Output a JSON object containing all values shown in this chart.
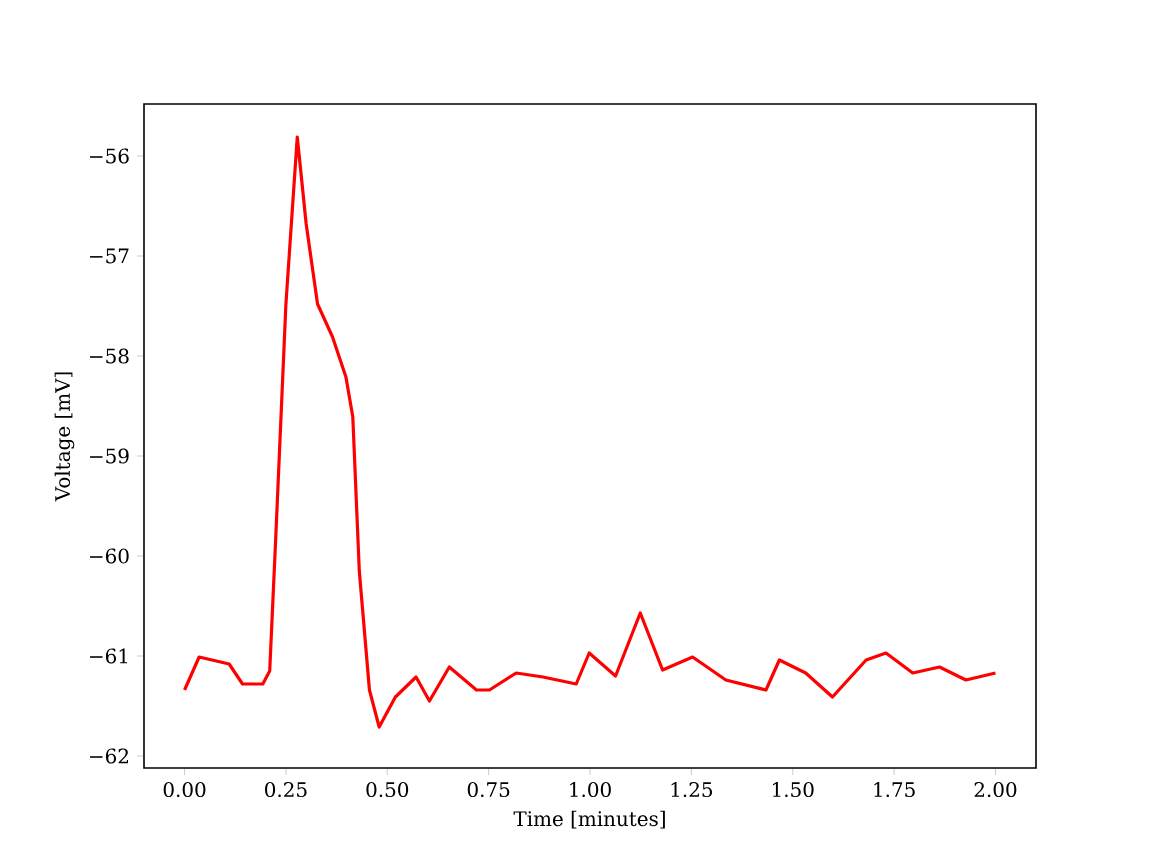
{
  "chart_data": {
    "type": "line",
    "xlabel": "Time [minutes]",
    "ylabel": "Voltage [mV]",
    "x": [
      0,
      0.036,
      0.11,
      0.143,
      0.193,
      0.21,
      0.225,
      0.25,
      0.278,
      0.3,
      0.328,
      0.365,
      0.398,
      0.415,
      0.431,
      0.456,
      0.48,
      0.52,
      0.571,
      0.604,
      0.653,
      0.72,
      0.752,
      0.818,
      0.884,
      0.966,
      0.998,
      1.063,
      1.124,
      1.179,
      1.253,
      1.335,
      1.434,
      1.467,
      1.532,
      1.598,
      1.681,
      1.73,
      1.796,
      1.862,
      1.927,
      2.0
    ],
    "series": [
      {
        "color": "#ff0000",
        "values": [
          -61.34,
          -61.01,
          -61.08,
          -61.28,
          -61.28,
          -61.15,
          -59.81,
          -57.48,
          -55.81,
          -56.68,
          -57.48,
          -57.81,
          -58.21,
          -58.61,
          -60.15,
          -61.34,
          -61.71,
          -61.41,
          -61.21,
          -61.45,
          -61.11,
          -61.34,
          -61.34,
          -61.17,
          -61.21,
          -61.28,
          -60.97,
          -61.2,
          -60.57,
          -61.14,
          -61.01,
          -61.24,
          -61.34,
          -61.04,
          -61.17,
          -61.41,
          -61.04,
          -60.97,
          -61.17,
          -61.11,
          -61.24,
          -61.17
        ]
      }
    ],
    "xlim": [
      -0.1,
      2.1
    ],
    "ylim": [
      -62.12,
      -55.48
    ],
    "xticks": [
      {
        "value": 0,
        "label": "0.00"
      },
      {
        "value": 0.25,
        "label": "0.25"
      },
      {
        "value": 0.5,
        "label": "0.50"
      },
      {
        "value": 0.75,
        "label": "0.75"
      },
      {
        "value": 1,
        "label": "1.00"
      },
      {
        "value": 1.25,
        "label": "1.25"
      },
      {
        "value": 1.5,
        "label": "1.50"
      },
      {
        "value": 1.75,
        "label": "1.75"
      },
      {
        "value": 2,
        "label": "2.00"
      }
    ],
    "yticks": [
      {
        "value": -62,
        "label": "−62"
      },
      {
        "value": -61,
        "label": "−61"
      },
      {
        "value": -60,
        "label": "−60"
      },
      {
        "value": -59,
        "label": "−59"
      },
      {
        "value": -58,
        "label": "−58"
      },
      {
        "value": -57,
        "label": "−57"
      },
      {
        "value": -56,
        "label": "−56"
      }
    ],
    "grid": false,
    "marker": "none",
    "line_style": "solid"
  }
}
